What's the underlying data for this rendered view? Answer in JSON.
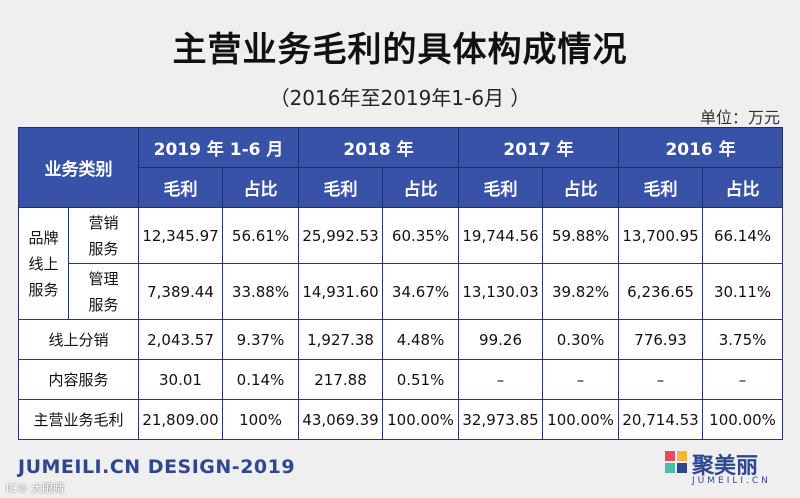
{
  "title": "主营业务毛利的具体构成情况",
  "subtitle": "（2016年至2019年1-6月 ）",
  "unit": "单位：万元",
  "header": {
    "corner": "业务类别",
    "years": [
      "2019 年 1-6 月",
      "2018 年",
      "2017 年",
      "2016 年"
    ],
    "sub_gross": "毛利",
    "sub_ratio": "占比"
  },
  "group_label": [
    "品牌",
    "线上",
    "服务"
  ],
  "rows": [
    {
      "label": [
        "营销",
        "服务"
      ],
      "values": [
        "12,345.97",
        "56.61%",
        "25,992.53",
        "60.35%",
        "19,744.56",
        "59.88%",
        "13,700.95",
        "66.14%"
      ]
    },
    {
      "label": [
        "管理",
        "服务"
      ],
      "values": [
        "7,389.44",
        "33.88%",
        "14,931.60",
        "34.67%",
        "13,130.03",
        "39.82%",
        "6,236.65",
        "30.11%"
      ]
    },
    {
      "label": "线上分销",
      "values": [
        "2,043.57",
        "9.37%",
        "1,927.38",
        "4.48%",
        "99.26",
        "0.30%",
        "776.93",
        "3.75%"
      ]
    },
    {
      "label": "内容服务",
      "values": [
        "30.01",
        "0.14%",
        "217.88",
        "0.51%",
        "–",
        "–",
        "–",
        "–"
      ]
    },
    {
      "label": "主营业务毛利",
      "values": [
        "21,809.00",
        "100%",
        "43,069.39",
        "100.00%",
        "32,973.85",
        "100.00%",
        "20,714.53",
        "100.00%"
      ]
    }
  ],
  "footer": {
    "design": "JUMEILI.CN DESIGN-2019",
    "watermark": "IC© 大眼睛",
    "logo_text": "聚美丽",
    "logo_sub": "JUMEILI.CN",
    "brand_color": "#2f478f"
  }
}
